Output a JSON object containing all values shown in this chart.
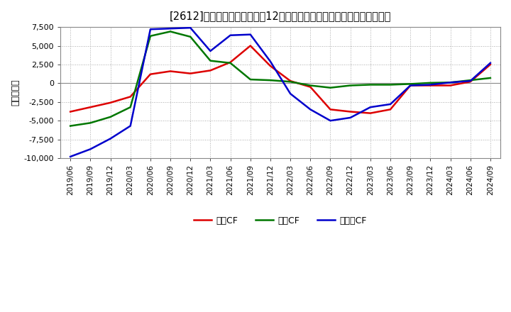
{
  "title": "[☒] キャッシュフローの12か月移動合計の対前年同期増減額の推移",
  "title_str": "[2612]　キャッシュフローの12か月移動合計の対前年同期増減額の推移",
  "ylabel": "（百万円）",
  "background_color": "#ffffff",
  "plot_bg_color": "#ffffff",
  "grid_color": "#aaaaaa",
  "ylim": [
    -10000,
    7500
  ],
  "yticks": [
    -10000,
    -7500,
    -5000,
    -2500,
    0,
    2500,
    5000,
    7500
  ],
  "dates": [
    "2019/06",
    "2019/09",
    "2019/12",
    "2020/03",
    "2020/06",
    "2020/09",
    "2020/12",
    "2021/03",
    "2021/06",
    "2021/09",
    "2021/12",
    "2022/03",
    "2022/06",
    "2022/09",
    "2022/12",
    "2023/03",
    "2023/06",
    "2023/09",
    "2023/12",
    "2024/03",
    "2024/06",
    "2024/09"
  ],
  "operating_cf": [
    -3800,
    -3200,
    -2600,
    -1800,
    1200,
    1600,
    1300,
    1700,
    2800,
    5000,
    2300,
    300,
    -500,
    -3500,
    -3800,
    -4000,
    -3500,
    -300,
    -300,
    -300,
    200,
    2500
  ],
  "investing_cf": [
    -5700,
    -5300,
    -4500,
    -3200,
    6300,
    6900,
    6200,
    3000,
    2700,
    500,
    400,
    200,
    -300,
    -600,
    -300,
    -200,
    -200,
    -100,
    50,
    100,
    400,
    700
  ],
  "free_cf": [
    -9800,
    -8800,
    -7400,
    -5700,
    7200,
    7300,
    7400,
    4300,
    6400,
    6500,
    2900,
    -1400,
    -3500,
    -5000,
    -4600,
    -3200,
    -2800,
    -300,
    -200,
    100,
    300,
    2700
  ],
  "operating_color": "#dd0000",
  "investing_color": "#007700",
  "free_color": "#0000cc",
  "line_width": 1.8,
  "legend_labels": [
    "営業CF",
    "投資CF",
    "フリーCF"
  ]
}
